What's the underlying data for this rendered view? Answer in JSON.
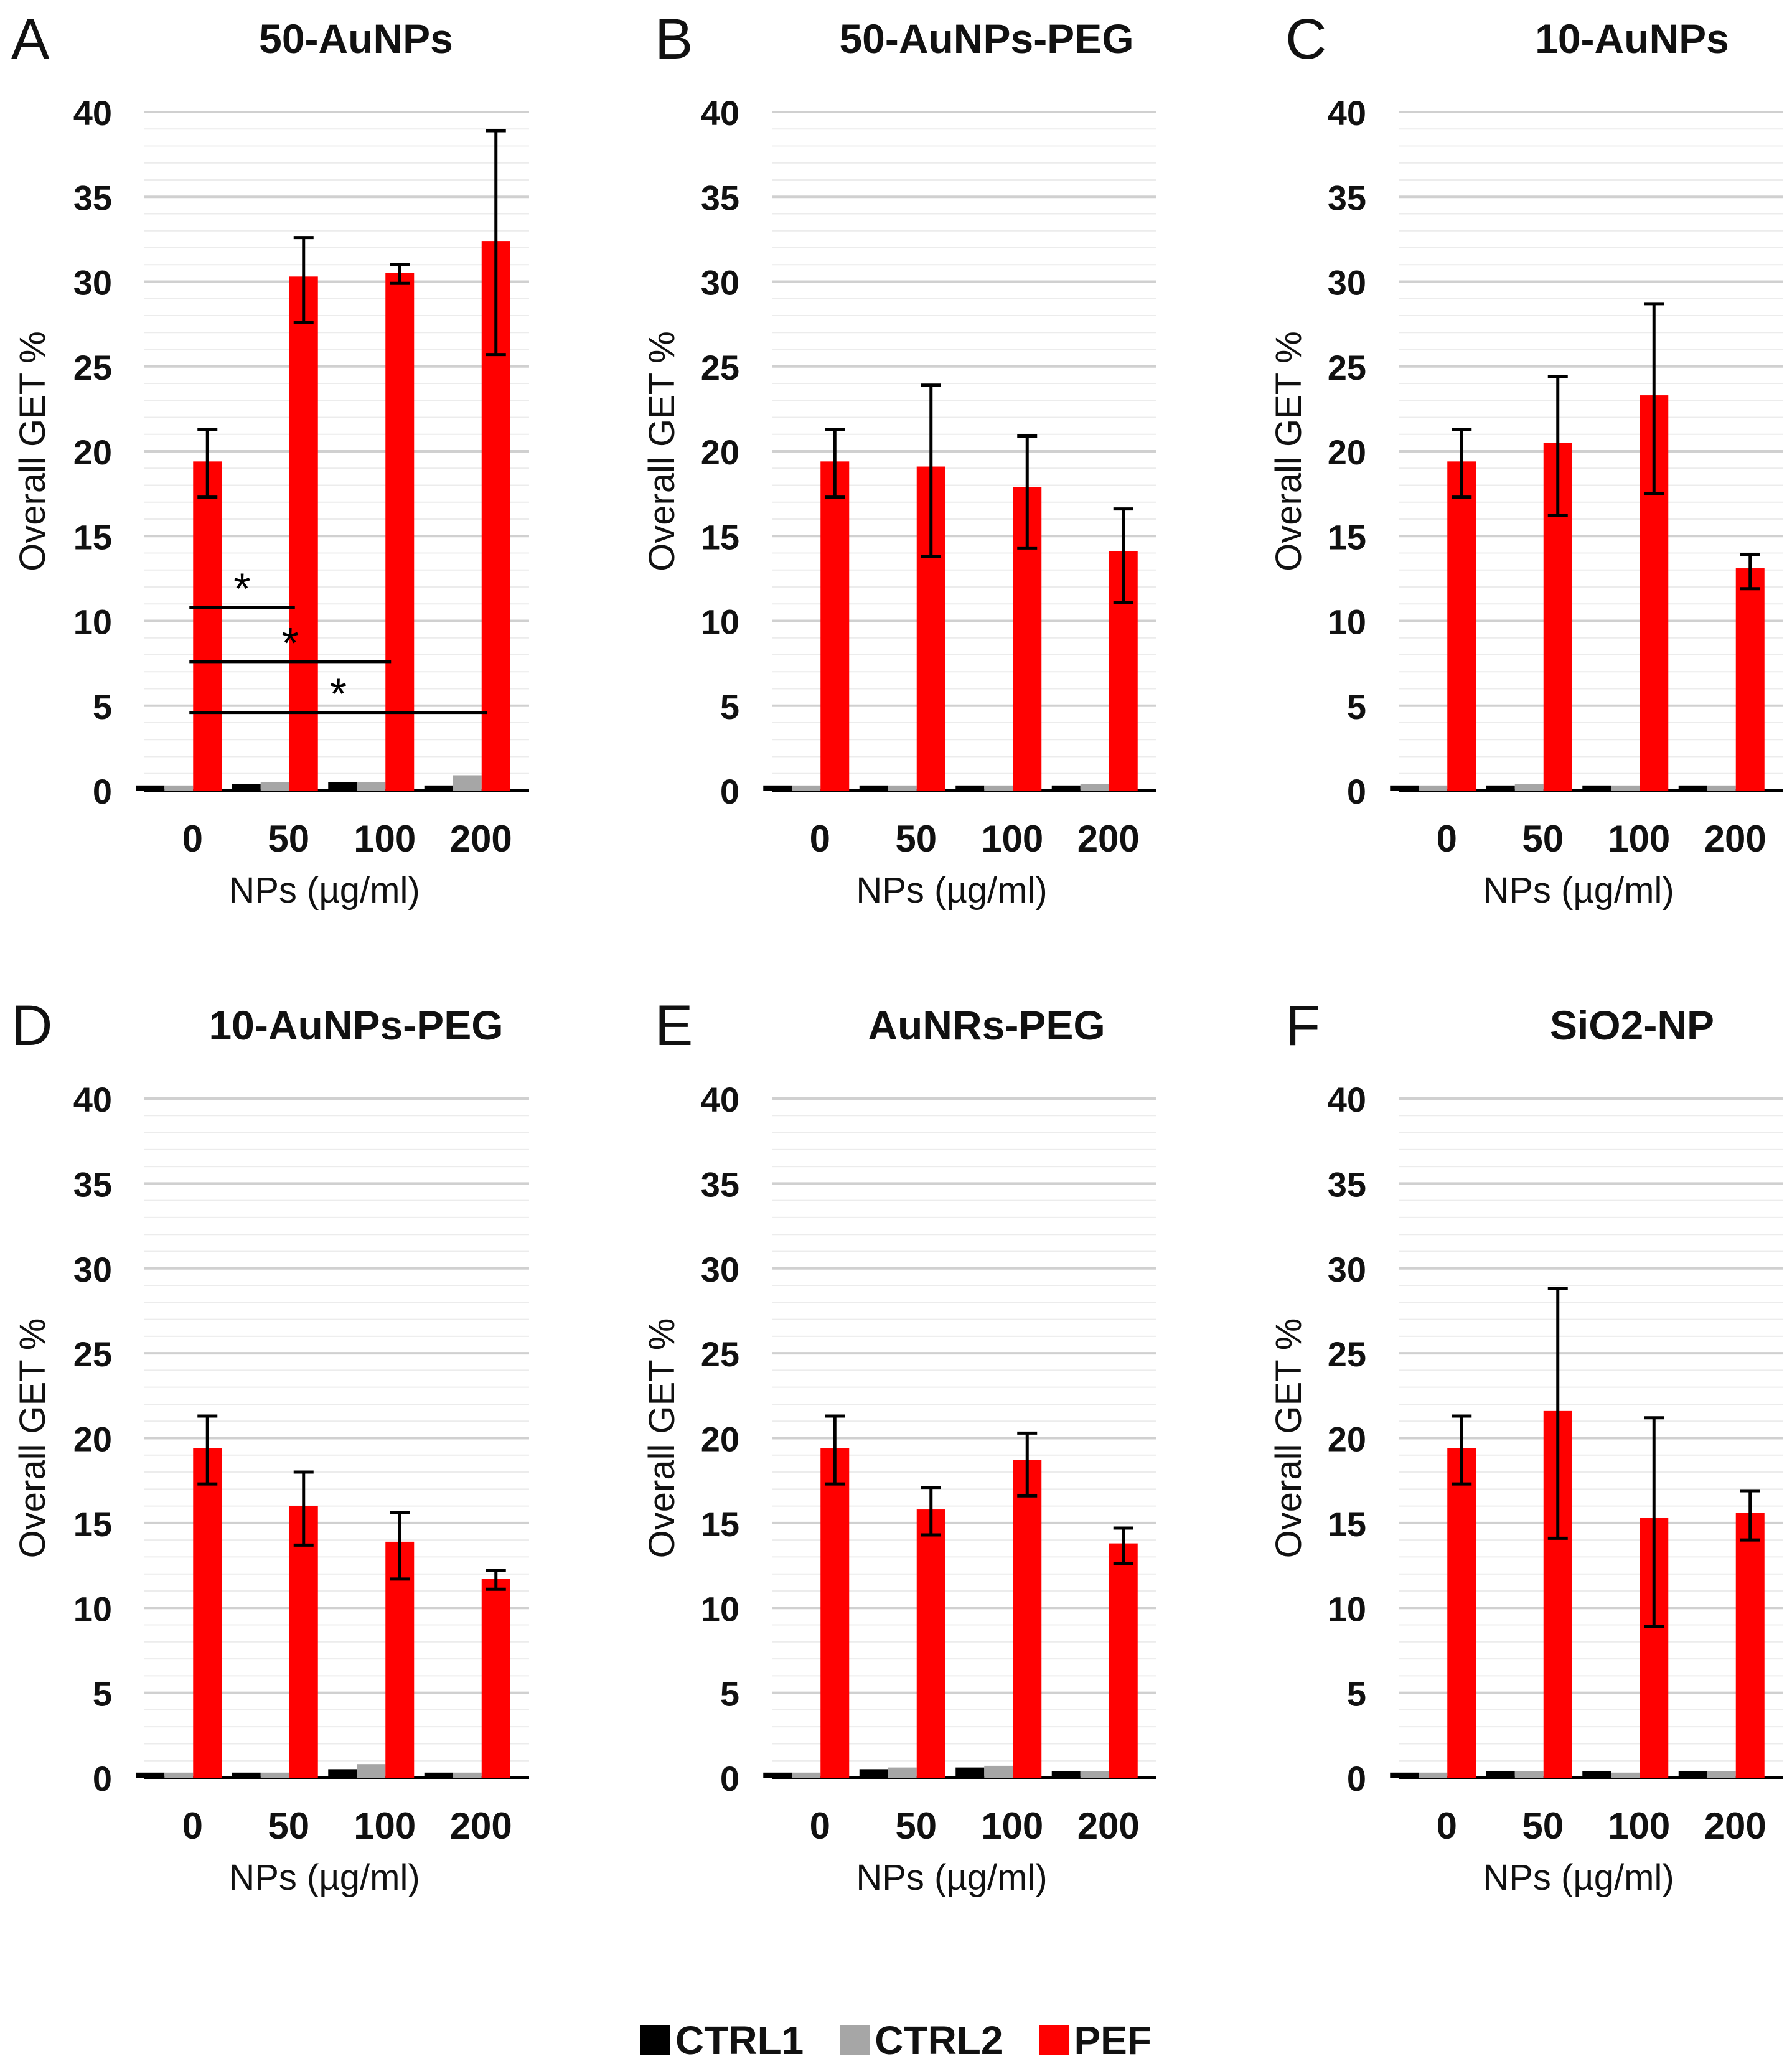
{
  "colors": {
    "CTRL1": "#000000",
    "CTRL2": "#a6a6a6",
    "PEF": "#ff0000",
    "grid": "#d9d9d9",
    "axis": "#000000"
  },
  "legend": [
    {
      "key": "CTRL1",
      "label": "CTRL1"
    },
    {
      "key": "CTRL2",
      "label": "CTRL2"
    },
    {
      "key": "PEF",
      "label": "PEF"
    }
  ],
  "chart_data": [
    {
      "panel": "A",
      "title": "50-AuNPs",
      "type": "bar",
      "xlabel": "NPs (µg/ml)",
      "ylabel": "Overall GET %",
      "categories": [
        "0",
        "50",
        "100",
        "200"
      ],
      "ylim": [
        0,
        40
      ],
      "yticks": [
        "0",
        "5",
        "10",
        "15",
        "20",
        "25",
        "30",
        "35",
        "40"
      ],
      "series": [
        {
          "name": "CTRL1",
          "values": [
            0.3,
            0.4,
            0.5,
            0.3
          ]
        },
        {
          "name": "CTRL2",
          "values": [
            0.3,
            0.5,
            0.5,
            0.9
          ]
        },
        {
          "name": "PEF",
          "values": [
            19.4,
            30.3,
            30.5,
            32.4
          ],
          "err_low": [
            2.1,
            2.7,
            0.6,
            6.7
          ],
          "err_high": [
            1.9,
            2.3,
            0.5,
            6.5
          ]
        }
      ],
      "annotations": [
        {
          "text": "*",
          "x_from": 0,
          "x_to": 1,
          "y": 10.8
        },
        {
          "text": "*",
          "x_from": 0,
          "x_to": 2,
          "y": 7.6
        },
        {
          "text": "*",
          "x_from": 0,
          "x_to": 3,
          "y": 4.6
        }
      ]
    },
    {
      "panel": "B",
      "title": "50-AuNPs-PEG",
      "type": "bar",
      "xlabel": "NPs (µg/ml)",
      "ylabel": "Overall GET %",
      "categories": [
        "0",
        "50",
        "100",
        "200"
      ],
      "ylim": [
        0,
        40
      ],
      "yticks": [
        "0",
        "5",
        "10",
        "15",
        "20",
        "25",
        "30",
        "35",
        "40"
      ],
      "series": [
        {
          "name": "CTRL1",
          "values": [
            0.3,
            0.3,
            0.3,
            0.3
          ]
        },
        {
          "name": "CTRL2",
          "values": [
            0.3,
            0.3,
            0.3,
            0.4
          ]
        },
        {
          "name": "PEF",
          "values": [
            19.4,
            19.1,
            17.9,
            14.1
          ],
          "err_low": [
            2.1,
            5.3,
            3.6,
            3.0
          ],
          "err_high": [
            1.9,
            4.8,
            3.0,
            2.5
          ]
        }
      ],
      "annotations": []
    },
    {
      "panel": "C",
      "title": "10-AuNPs",
      "type": "bar",
      "xlabel": "NPs (µg/ml)",
      "ylabel": "Overall GET %",
      "categories": [
        "0",
        "50",
        "100",
        "200"
      ],
      "ylim": [
        0,
        40
      ],
      "yticks": [
        "0",
        "5",
        "10",
        "15",
        "20",
        "25",
        "30",
        "35",
        "40"
      ],
      "series": [
        {
          "name": "CTRL1",
          "values": [
            0.3,
            0.3,
            0.3,
            0.3
          ]
        },
        {
          "name": "CTRL2",
          "values": [
            0.3,
            0.4,
            0.3,
            0.3
          ]
        },
        {
          "name": "PEF",
          "values": [
            19.4,
            20.5,
            23.3,
            13.1
          ],
          "err_low": [
            2.1,
            4.3,
            5.8,
            1.2
          ],
          "err_high": [
            1.9,
            3.9,
            5.4,
            0.8
          ]
        }
      ],
      "annotations": []
    },
    {
      "panel": "D",
      "title": "10-AuNPs-PEG",
      "type": "bar",
      "xlabel": "NPs (µg/ml)",
      "ylabel": "Overall GET %",
      "categories": [
        "0",
        "50",
        "100",
        "200"
      ],
      "ylim": [
        0,
        40
      ],
      "yticks": [
        "0",
        "5",
        "10",
        "15",
        "20",
        "25",
        "30",
        "35",
        "40"
      ],
      "series": [
        {
          "name": "CTRL1",
          "values": [
            0.3,
            0.3,
            0.5,
            0.3
          ]
        },
        {
          "name": "CTRL2",
          "values": [
            0.3,
            0.3,
            0.8,
            0.3
          ]
        },
        {
          "name": "PEF",
          "values": [
            19.4,
            16.0,
            13.9,
            11.7
          ],
          "err_low": [
            2.1,
            2.3,
            2.2,
            0.6
          ],
          "err_high": [
            1.9,
            2.0,
            1.7,
            0.5
          ]
        }
      ],
      "annotations": []
    },
    {
      "panel": "E",
      "title": "AuNRs-PEG",
      "type": "bar",
      "xlabel": "NPs (µg/ml)",
      "ylabel": "Overall GET %",
      "categories": [
        "0",
        "50",
        "100",
        "200"
      ],
      "ylim": [
        0,
        40
      ],
      "yticks": [
        "0",
        "5",
        "10",
        "15",
        "20",
        "25",
        "30",
        "35",
        "40"
      ],
      "series": [
        {
          "name": "CTRL1",
          "values": [
            0.3,
            0.5,
            0.6,
            0.4
          ]
        },
        {
          "name": "CTRL2",
          "values": [
            0.3,
            0.6,
            0.7,
            0.4
          ]
        },
        {
          "name": "PEF",
          "values": [
            19.4,
            15.8,
            18.7,
            13.8
          ],
          "err_low": [
            2.1,
            1.5,
            2.1,
            1.2
          ],
          "err_high": [
            1.9,
            1.3,
            1.6,
            0.9
          ]
        }
      ],
      "annotations": []
    },
    {
      "panel": "F",
      "title": "SiO2-NP",
      "type": "bar",
      "xlabel": "NPs (µg/ml)",
      "ylabel": "Overall GET %",
      "categories": [
        "0",
        "50",
        "100",
        "200"
      ],
      "ylim": [
        0,
        40
      ],
      "yticks": [
        "0",
        "5",
        "10",
        "15",
        "20",
        "25",
        "30",
        "35",
        "40"
      ],
      "series": [
        {
          "name": "CTRL1",
          "values": [
            0.3,
            0.4,
            0.4,
            0.4
          ]
        },
        {
          "name": "CTRL2",
          "values": [
            0.3,
            0.4,
            0.3,
            0.4
          ]
        },
        {
          "name": "PEF",
          "values": [
            19.4,
            21.6,
            15.3,
            15.6
          ],
          "err_low": [
            2.1,
            7.5,
            6.4,
            1.6
          ],
          "err_high": [
            1.9,
            7.2,
            5.9,
            1.3
          ]
        }
      ],
      "annotations": []
    }
  ]
}
